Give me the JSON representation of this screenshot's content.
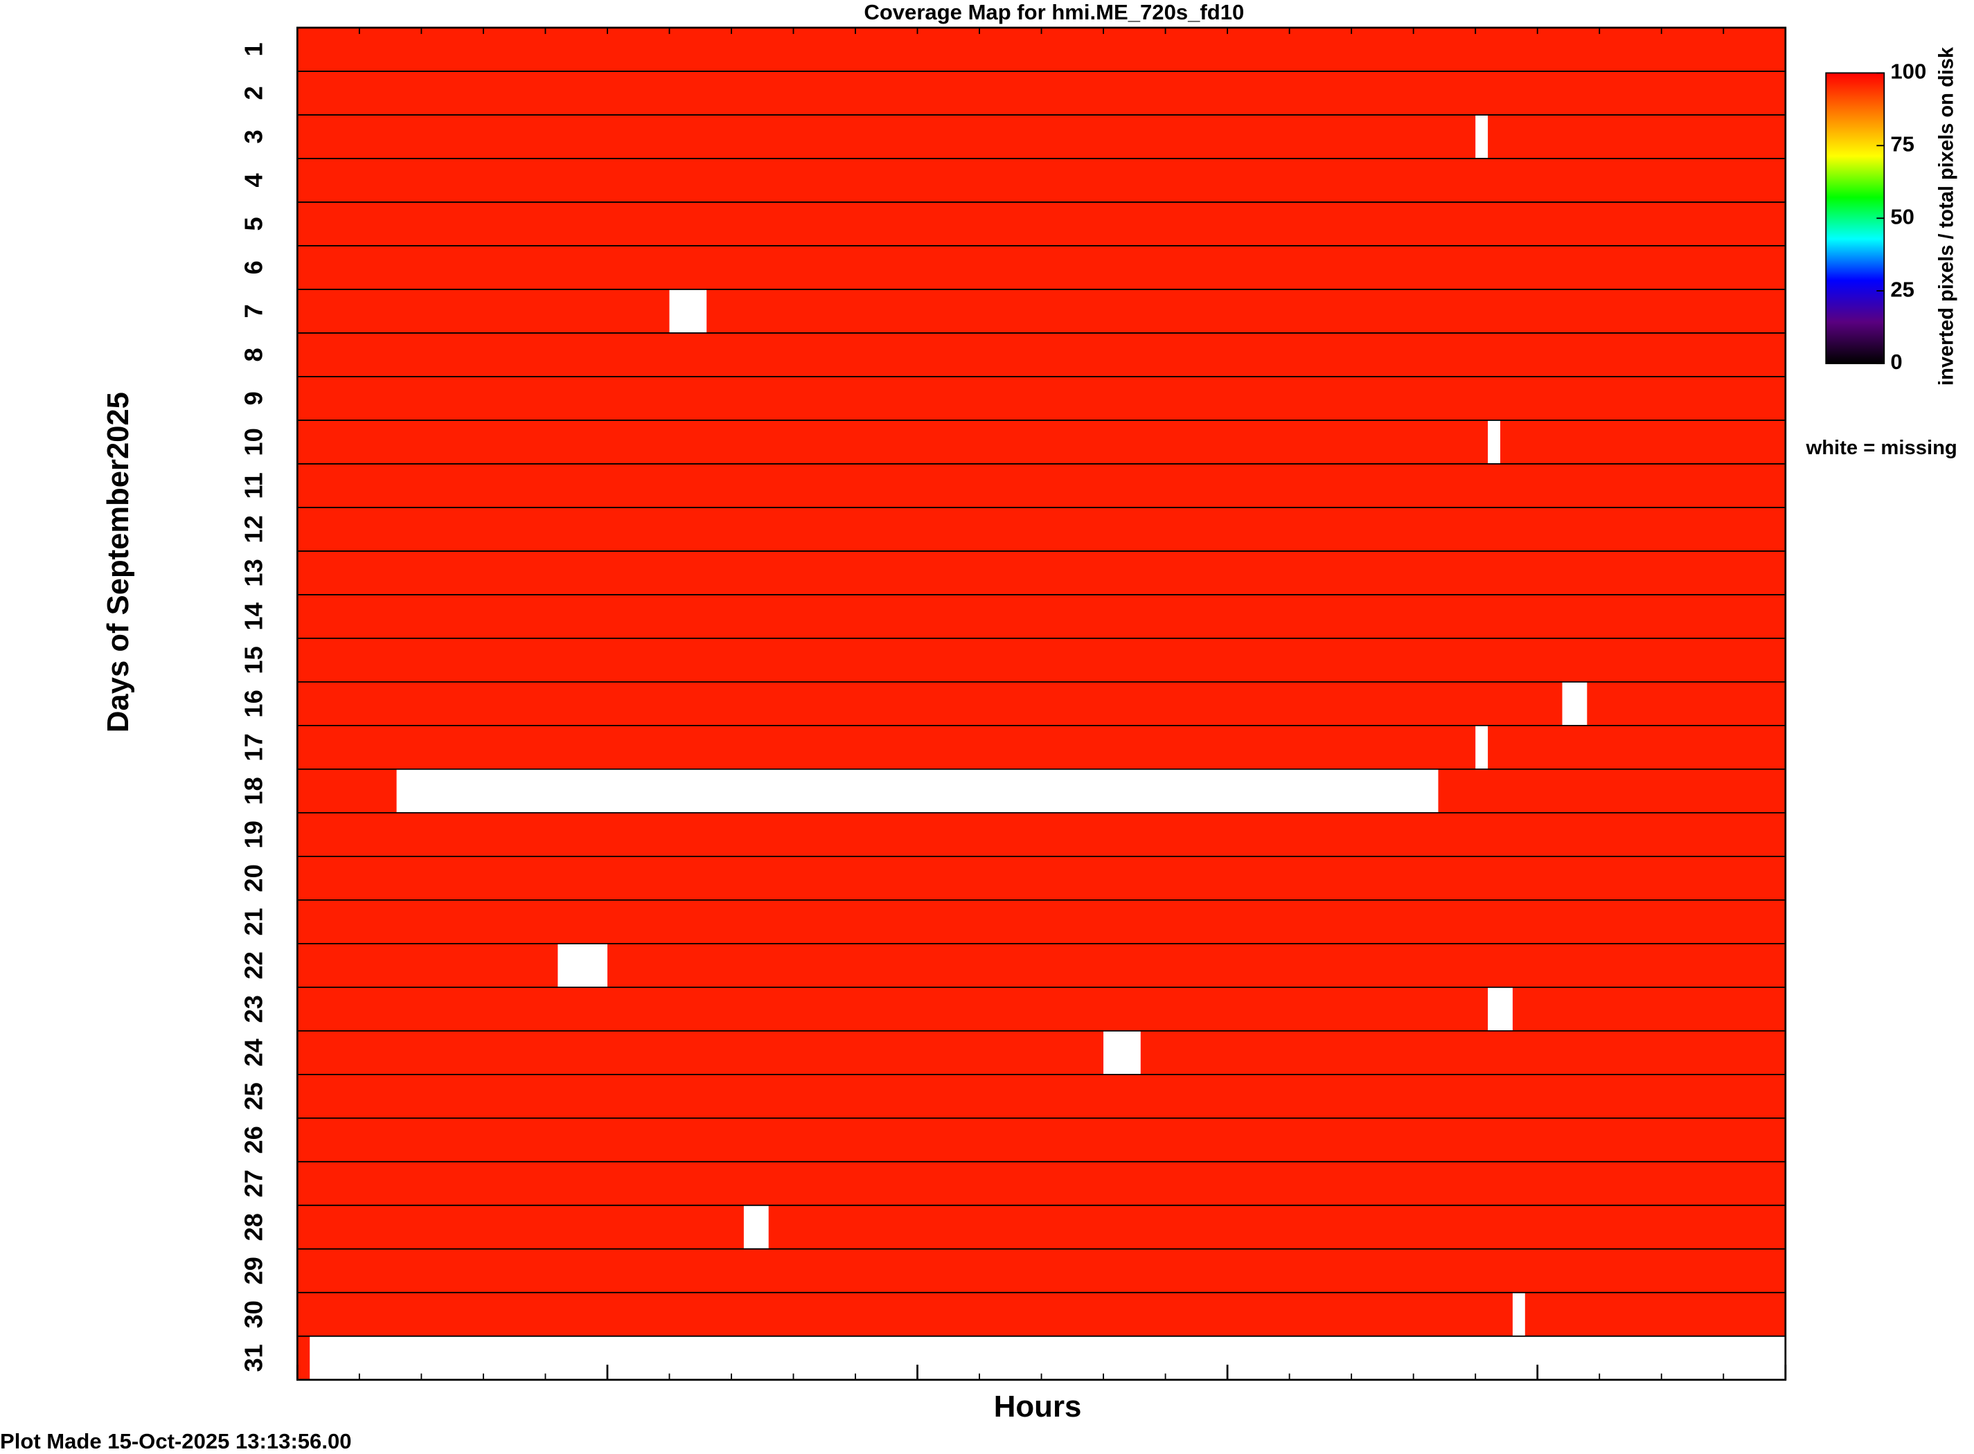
{
  "chart_data": {
    "type": "coverage-map",
    "title": "Coverage Map for hmi.ME_720s_fd10",
    "y_label": "Days of September2025",
    "x_label": "Hours",
    "footer": "Plot Made 15-Oct-2025 13:13:56.00",
    "categories": [
      "1",
      "2",
      "3",
      "4",
      "5",
      "6",
      "7",
      "8",
      "9",
      "10",
      "11",
      "12",
      "13",
      "14",
      "15",
      "16",
      "17",
      "18",
      "19",
      "20",
      "21",
      "22",
      "23",
      "24",
      "25",
      "26",
      "27",
      "28",
      "29",
      "30",
      "31"
    ],
    "values": [
      100,
      100,
      100,
      100,
      100,
      100,
      100,
      100,
      100,
      100,
      100,
      100,
      100,
      100,
      100,
      100,
      100,
      100,
      100,
      100,
      100,
      100,
      100,
      100,
      100,
      100,
      100,
      100,
      100,
      100,
      100
    ],
    "color": "#ff1e00",
    "missing_color": "#ffffff",
    "gaps": [
      {
        "day": 3,
        "start": 19.0,
        "end": 19.2
      },
      {
        "day": 7,
        "start": 6.0,
        "end": 6.6
      },
      {
        "day": 10,
        "start": 19.2,
        "end": 19.4
      },
      {
        "day": 16,
        "start": 20.4,
        "end": 20.8
      },
      {
        "day": 17,
        "start": 19.0,
        "end": 19.2
      },
      {
        "day": 18,
        "start": 1.6,
        "end": 18.4
      },
      {
        "day": 22,
        "start": 4.2,
        "end": 5.0
      },
      {
        "day": 23,
        "start": 19.2,
        "end": 19.6
      },
      {
        "day": 24,
        "start": 13.0,
        "end": 13.6
      },
      {
        "day": 28,
        "start": 7.2,
        "end": 7.6
      },
      {
        "day": 30,
        "start": 19.6,
        "end": 19.8
      },
      {
        "day": 31,
        "start": 0.2,
        "end": 24
      }
    ],
    "xlim": [
      0,
      24
    ],
    "xticks": [
      0,
      5,
      10,
      15,
      20,
      24
    ],
    "xminor_step": 1,
    "colorbar": {
      "label": "inverted pixels / total pixels on disk",
      "lim": [
        0,
        100
      ],
      "ticks": [
        0,
        25,
        50,
        75,
        100
      ],
      "colors": [
        "#000000",
        "#5a0080",
        "#0000ff",
        "#00ffff",
        "#00ff00",
        "#ffff00",
        "#ff8000",
        "#ff0000"
      ]
    },
    "missing_note": "white = missing"
  }
}
